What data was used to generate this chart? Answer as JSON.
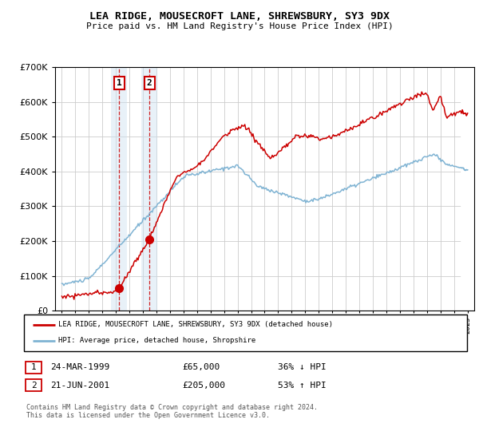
{
  "title": "LEA RIDGE, MOUSECROFT LANE, SHREWSBURY, SY3 9DX",
  "subtitle": "Price paid vs. HM Land Registry's House Price Index (HPI)",
  "legend_line1": "LEA RIDGE, MOUSECROFT LANE, SHREWSBURY, SY3 9DX (detached house)",
  "legend_line2": "HPI: Average price, detached house, Shropshire",
  "table_row1": [
    "1",
    "24-MAR-1999",
    "£65,000",
    "36% ↓ HPI"
  ],
  "table_row2": [
    "2",
    "21-JUN-2001",
    "£205,000",
    "53% ↑ HPI"
  ],
  "footnote": "Contains HM Land Registry data © Crown copyright and database right 2024.\nThis data is licensed under the Open Government Licence v3.0.",
  "transaction1_year": 1999.23,
  "transaction1_price": 65000,
  "transaction2_year": 2001.47,
  "transaction2_price": 205000,
  "ylim": [
    0,
    700000
  ],
  "xlim_start": 1994.5,
  "xlim_end": 2025.5,
  "red_color": "#cc0000",
  "blue_color": "#7fb3d3",
  "background_color": "#ffffff",
  "grid_color": "#cccccc",
  "shade_color": "#cce0f0"
}
